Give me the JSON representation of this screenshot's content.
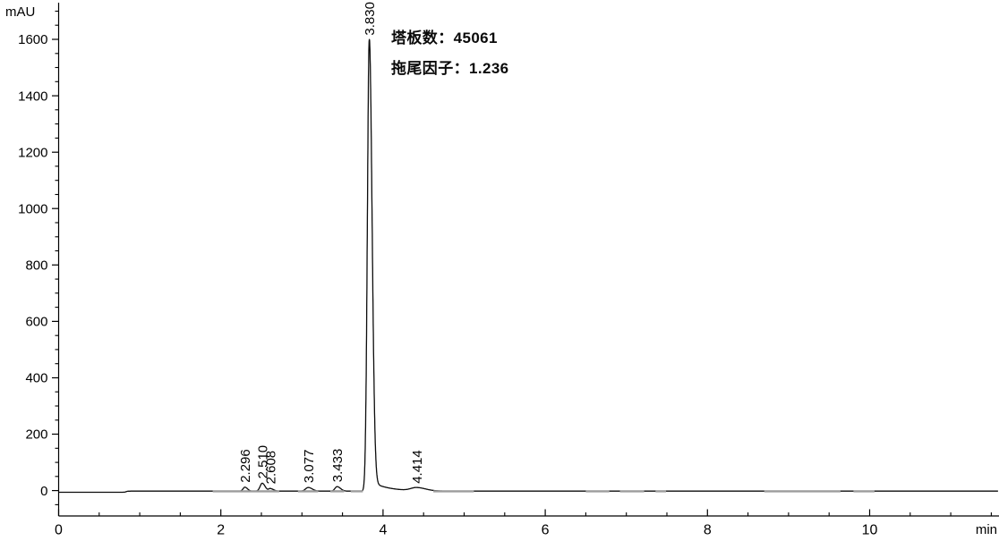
{
  "chart_data": {
    "type": "line",
    "title": "",
    "xlabel": "min",
    "ylabel": "mAU",
    "xlim": [
      0,
      11.6
    ],
    "ylim": [
      -90,
      1730
    ],
    "x_major_ticks": [
      0,
      2,
      4,
      6,
      8,
      10
    ],
    "x_minor_step": 0.5,
    "y_major_ticks": [
      0,
      200,
      400,
      600,
      800,
      1000,
      1200,
      1400,
      1600
    ],
    "y_minor_step": 50,
    "grid": false,
    "background_color": "#ffffff",
    "trace_color": "#0d0d0d",
    "integration_mark_color": "#9c9c9c",
    "baseline": {
      "start_mau": -6,
      "level_mau": -2,
      "step_time_min": 0.83
    },
    "peaks": [
      {
        "rt": 2.296,
        "label": "2.296",
        "height_mau": 14,
        "sigma_left": 0.022,
        "sigma_right": 0.032
      },
      {
        "rt": 2.51,
        "label": "2.510",
        "height_mau": 28,
        "sigma_left": 0.026,
        "sigma_right": 0.036
      },
      {
        "rt": 2.608,
        "label": "2.608",
        "height_mau": 9,
        "sigma_left": 0.018,
        "sigma_right": 0.04
      },
      {
        "rt": 3.077,
        "label": "3.077",
        "height_mau": 13,
        "sigma_left": 0.032,
        "sigma_right": 0.05
      },
      {
        "rt": 3.433,
        "label": "3.433",
        "height_mau": 16,
        "sigma_left": 0.026,
        "sigma_right": 0.042
      },
      {
        "rt": 3.83,
        "label": "3.830",
        "height_mau": 1600,
        "sigma_left": 0.023,
        "sigma_right": 0.034,
        "tailing": true
      },
      {
        "rt": 4.414,
        "label": "4.414",
        "height_mau": 11,
        "sigma_left": 0.07,
        "sigma_right": 0.11
      }
    ],
    "integration_segments_min": [
      [
        1.9,
        2.72
      ],
      [
        2.95,
        3.2
      ],
      [
        3.35,
        3.52
      ],
      [
        3.6,
        3.75
      ],
      [
        4.62,
        5.12
      ],
      [
        6.5,
        6.79
      ],
      [
        6.92,
        7.22
      ],
      [
        7.36,
        7.49
      ],
      [
        8.7,
        9.64
      ],
      [
        9.8,
        10.06
      ]
    ],
    "annotations": [
      {
        "label": "塔板数：",
        "value": "45061"
      },
      {
        "label": "拖尾因子：",
        "value": "1.236"
      }
    ]
  }
}
